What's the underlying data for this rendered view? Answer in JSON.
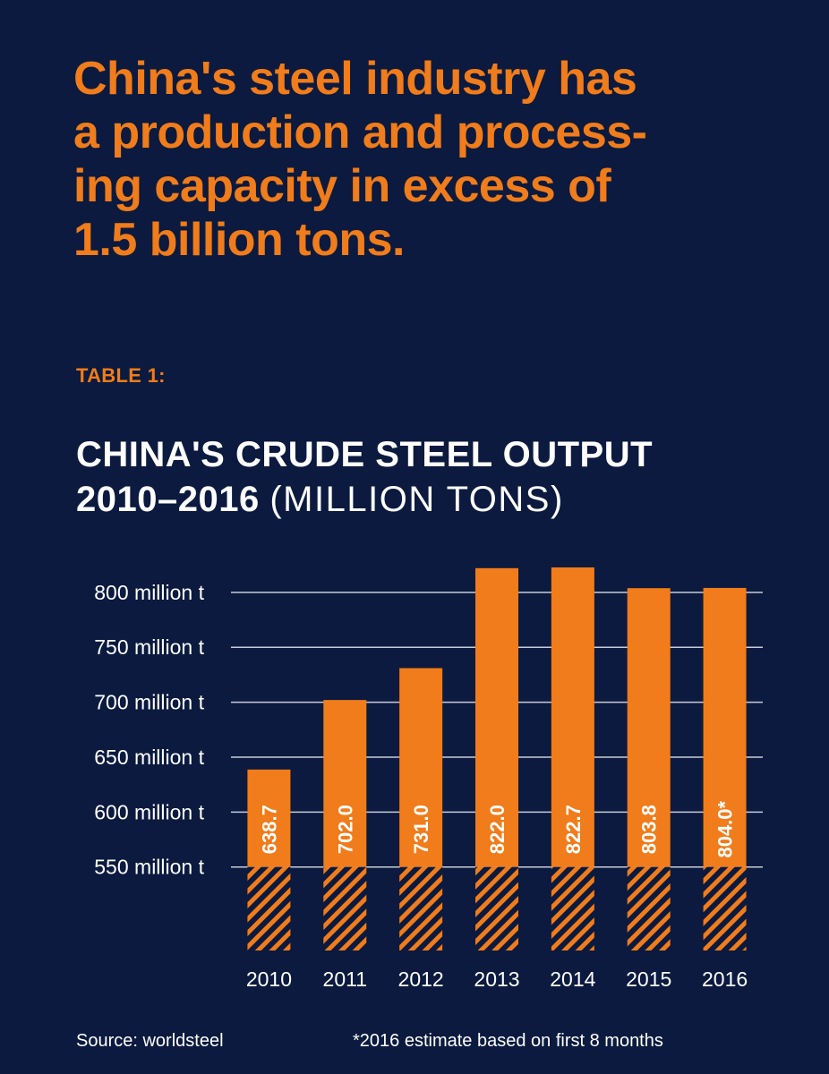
{
  "headline": {
    "line1": "China's steel industry has",
    "line2": "a production and process-",
    "line3": "ing capacity in excess of",
    "line4": "1.5 billion tons."
  },
  "table_label": "TABLE 1:",
  "chart_title": {
    "line1": "CHINA'S CRUDE STEEL OUTPUT",
    "line2_bold": "2010–2016",
    "line2_light": "(MILLION TONS)"
  },
  "footer": {
    "source": "Source: worldsteel",
    "note": "*2016 estimate based on first 8 months"
  },
  "colors": {
    "background": "#0b1a3e",
    "accent": "#f07c1b",
    "text": "#ffffff",
    "gridline": "#c8ccd8"
  },
  "chart_data": {
    "type": "bar",
    "categories": [
      "2010",
      "2011",
      "2012",
      "2013",
      "2014",
      "2015",
      "2016"
    ],
    "values": [
      638.7,
      702.0,
      731.0,
      822.0,
      822.7,
      803.8,
      804.0
    ],
    "data_labels": [
      "638.7",
      "702.0",
      "731.0",
      "822.0",
      "822.7",
      "803.8",
      "804.0*"
    ],
    "y_ticks": [
      {
        "value": 550,
        "label": "550 million t"
      },
      {
        "value": 600,
        "label": "600 million t"
      },
      {
        "value": 650,
        "label": "650 million t"
      },
      {
        "value": 700,
        "label": "700 million t"
      },
      {
        "value": 750,
        "label": "750 million t"
      },
      {
        "value": 800,
        "label": "800 million t"
      }
    ],
    "ylim": [
      474,
      830
    ],
    "axis_break_below": 550,
    "grid": true,
    "xlabel": "",
    "ylabel": ""
  }
}
